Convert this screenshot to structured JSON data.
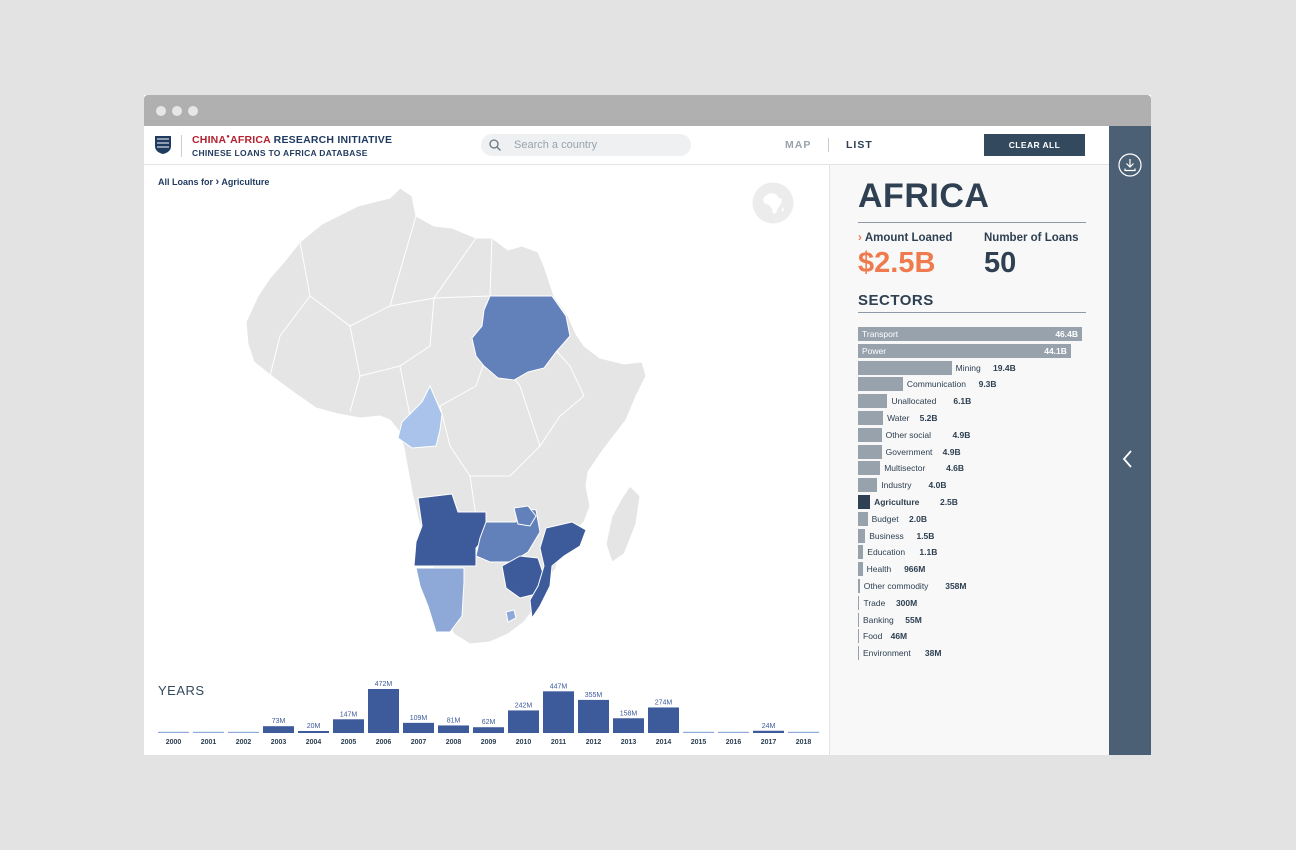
{
  "header": {
    "brand_part1": "CHINA",
    "brand_part2": "AFRICA",
    "brand_part3": " RESEARCH INITIATIVE",
    "subtitle": "CHINESE LOANS TO AFRICA DATABASE",
    "search_placeholder": "Search a country",
    "nav_map": "MAP",
    "nav_list": "LIST",
    "clear_all": "CLEAR ALL"
  },
  "breadcrumb": {
    "prefix": "All Loans for",
    "separator": "›",
    "current": "Agriculture"
  },
  "icons": {
    "search": "search-icon",
    "globe": "globe-icon",
    "download": "download-icon",
    "collapse": "chevron-left-icon",
    "logo": "sais-shield-logo-icon"
  },
  "colors": {
    "accent_orange": "#ef7a4e",
    "navy": "#2e4052",
    "rail": "#4c6075",
    "map_dark": "#3d5a9a",
    "map_mid": "#6280ba",
    "map_light": "#8ea9d8",
    "map_lighter": "#a9c3ea",
    "map_none": "#e5e5e5"
  },
  "summary": {
    "region": "AFRICA",
    "amount_label": "Amount Loaned",
    "amount_chevron": "›",
    "amount_value": "$2.5B",
    "count_label": "Number of Loans",
    "count_value": "50",
    "sectors_title": "SECTORS"
  },
  "sectors": [
    {
      "name": "Transport",
      "value": "46.4B",
      "amount": 46.4
    },
    {
      "name": "Power",
      "value": "44.1B",
      "amount": 44.1
    },
    {
      "name": "Mining",
      "value": "19.4B",
      "amount": 19.4
    },
    {
      "name": "Communication",
      "value": "9.3B",
      "amount": 9.3
    },
    {
      "name": "Unallocated",
      "value": "6.1B",
      "amount": 6.1
    },
    {
      "name": "Water",
      "value": "5.2B",
      "amount": 5.2
    },
    {
      "name": "Other social",
      "value": "4.9B",
      "amount": 4.9
    },
    {
      "name": "Government",
      "value": "4.9B",
      "amount": 4.9
    },
    {
      "name": "Multisector",
      "value": "4.6B",
      "amount": 4.6
    },
    {
      "name": "Industry",
      "value": "4.0B",
      "amount": 4.0
    },
    {
      "name": "Agriculture",
      "value": "2.5B",
      "amount": 2.5,
      "active": true
    },
    {
      "name": "Budget",
      "value": "2.0B",
      "amount": 2.0
    },
    {
      "name": "Business",
      "value": "1.5B",
      "amount": 1.5
    },
    {
      "name": "Education",
      "value": "1.1B",
      "amount": 1.1
    },
    {
      "name": "Health",
      "value": "966M",
      "amount": 0.966
    },
    {
      "name": "Other commodity",
      "value": "358M",
      "amount": 0.358
    },
    {
      "name": "Trade",
      "value": "300M",
      "amount": 0.3
    },
    {
      "name": "Banking",
      "value": "55M",
      "amount": 0.055
    },
    {
      "name": "Food",
      "value": "46M",
      "amount": 0.046
    },
    {
      "name": "Environment",
      "value": "38M",
      "amount": 0.038
    }
  ],
  "chart_data": {
    "type": "bar",
    "title": "YEARS",
    "categories": [
      "2000",
      "2001",
      "2002",
      "2003",
      "2004",
      "2005",
      "2006",
      "2007",
      "2008",
      "2009",
      "2010",
      "2011",
      "2012",
      "2013",
      "2014",
      "2015",
      "2016",
      "2017",
      "2018"
    ],
    "values": [
      0,
      0,
      0,
      73,
      20,
      147,
      472,
      109,
      81,
      62,
      242,
      447,
      355,
      158,
      274,
      0,
      0,
      24,
      0
    ],
    "value_labels": [
      "",
      "",
      "",
      "73M",
      "20M",
      "147M",
      "472M",
      "109M",
      "81M",
      "62M",
      "242M",
      "447M",
      "355M",
      "158M",
      "274M",
      "",
      "",
      "24M",
      ""
    ],
    "unit": "M",
    "ylim": [
      0,
      472
    ],
    "grid": false
  }
}
